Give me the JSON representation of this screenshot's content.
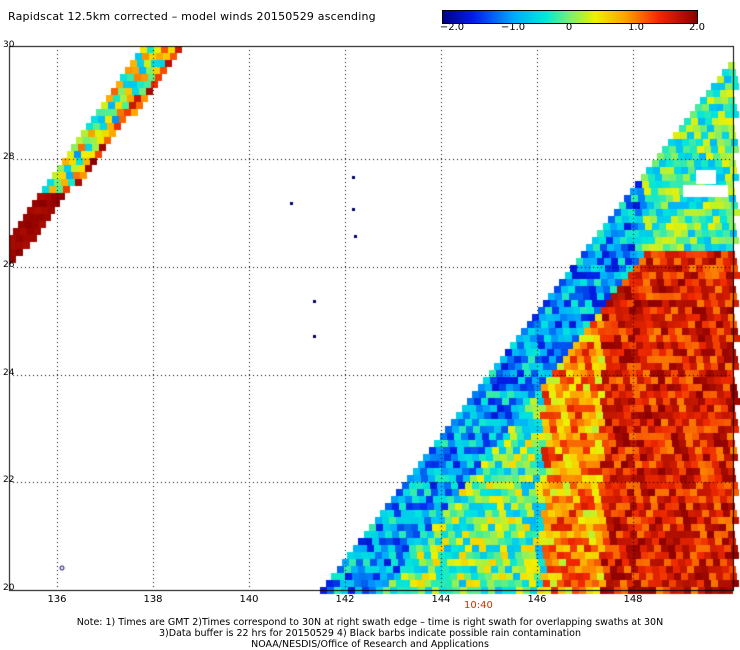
{
  "title": "Rapidscat 12.5km corrected – model winds 20150529 ascending",
  "colorbar": {
    "labels": [
      "−2.0",
      "−1.0",
      "0",
      "1.0",
      "2.0"
    ],
    "range": [
      -2.0,
      2.0
    ]
  },
  "map": {
    "lon_range": [
      135.5,
      150.0
    ],
    "lat_range": [
      20.0,
      30.0
    ],
    "x_ticks": [
      "136",
      "138",
      "140",
      "142",
      "144",
      "146",
      "148"
    ],
    "y_ticks": [
      "20",
      "22",
      "24",
      "26",
      "28",
      "30"
    ],
    "grid": "dotted",
    "swath_time_label": "10:40"
  },
  "notes": [
    "Note: 1) Times are GMT 2)Times correspond to 30N at right swath edge – time is right swath for overlapping swaths at 30N",
    "3)Data buffer is 22 hrs for 20150529 4) Black barbs indicate possible rain contamination",
    "NOAA/NESDIS/Office of Research and Applications"
  ]
}
